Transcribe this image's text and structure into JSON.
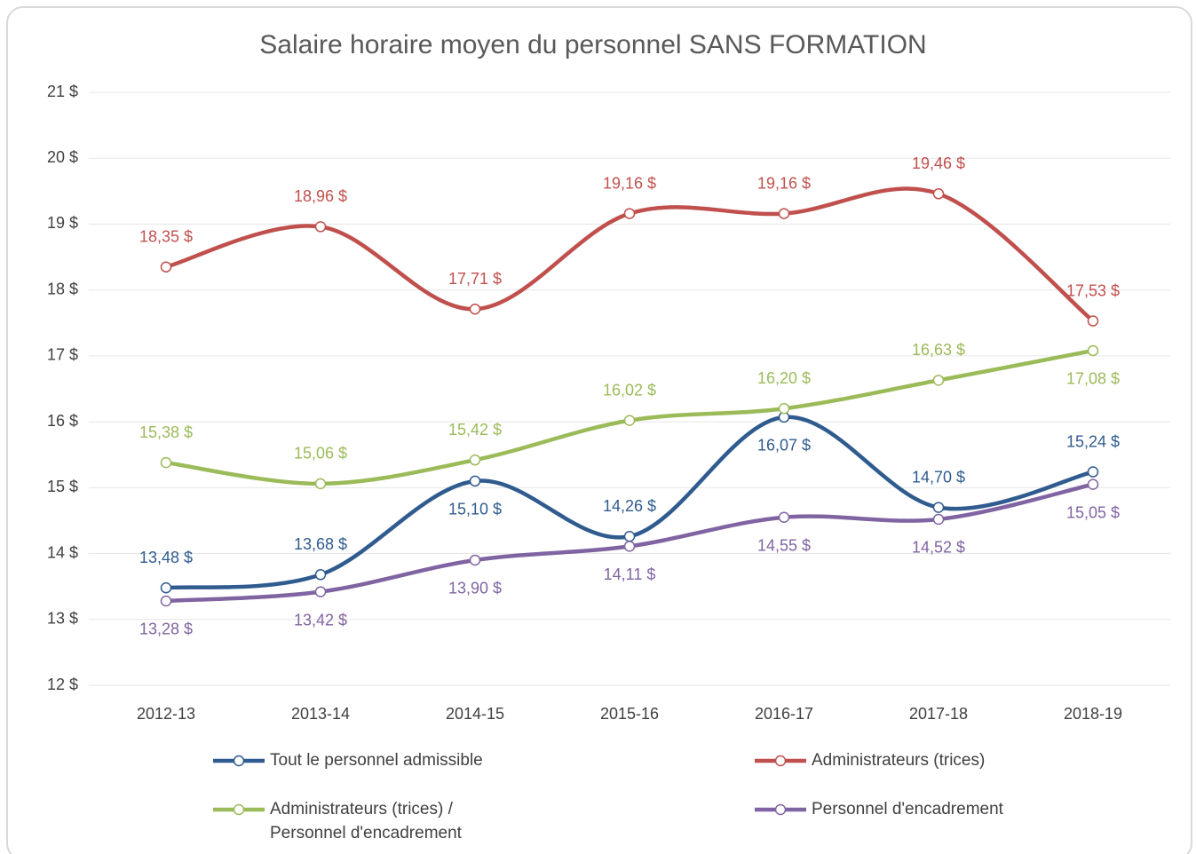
{
  "chart_data": {
    "type": "line",
    "title": "Salaire horaire moyen du personnel SANS FORMATION",
    "categories": [
      "2012-13",
      "2013-14",
      "2014-15",
      "2015-16",
      "2016-17",
      "2017-18",
      "2018-19"
    ],
    "series": [
      {
        "name": "Tout le personnel admissible",
        "color": "#2f5b8f",
        "values": [
          13.48,
          13.68,
          15.1,
          14.26,
          16.07,
          14.7,
          15.24
        ],
        "value_labels": [
          "13,48 $",
          "13,68 $",
          "15,10 $",
          "14,26 $",
          "16,07 $",
          "14,70 $",
          "15,24 $"
        ]
      },
      {
        "name": "Administrateurs (trices)",
        "color": "#c0504d",
        "values": [
          18.35,
          18.96,
          17.71,
          19.16,
          19.16,
          19.46,
          17.53
        ],
        "value_labels": [
          "18,35 $",
          "18,96 $",
          "17,71 $",
          "19,16 $",
          "19,16 $",
          "19,46 $",
          "17,53 $"
        ]
      },
      {
        "name": "Administrateurs (trices) / Personnel d'encadrement",
        "color": "#9bbb59",
        "values": [
          15.38,
          15.06,
          15.42,
          16.02,
          16.2,
          16.63,
          17.08
        ],
        "value_labels": [
          "15,38 $",
          "15,06 $",
          "15,42 $",
          "16,02 $",
          "16,20 $",
          "16,63 $",
          "17,08 $"
        ]
      },
      {
        "name": "Personnel d'encadrement",
        "color": "#8064a2",
        "values": [
          13.28,
          13.42,
          13.9,
          14.11,
          14.55,
          14.52,
          15.05
        ],
        "value_labels": [
          "13,28 $",
          "13,42 $",
          "13,90 $",
          "14,11 $",
          "14,55 $",
          "14,52 $",
          "15,05 $"
        ]
      }
    ],
    "ylim": [
      12,
      21
    ],
    "yticks": [
      {
        "value": 12,
        "label": "12 $"
      },
      {
        "value": 13,
        "label": "13 $"
      },
      {
        "value": 14,
        "label": "14 $"
      },
      {
        "value": 15,
        "label": "15 $"
      },
      {
        "value": 16,
        "label": "16 $"
      },
      {
        "value": 17,
        "label": "17 $"
      },
      {
        "value": 18,
        "label": "18 $"
      },
      {
        "value": 19,
        "label": "19 $"
      },
      {
        "value": 20,
        "label": "20 $"
      },
      {
        "value": 21,
        "label": "21 $"
      }
    ],
    "grid": true,
    "legend": "bottom"
  }
}
